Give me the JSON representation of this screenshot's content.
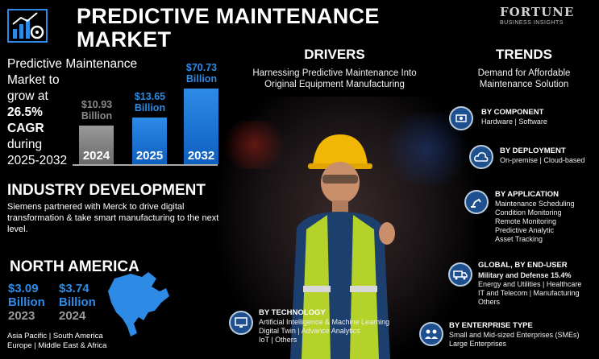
{
  "header": {
    "title_line1": "PREDICTIVE MAINTENANCE",
    "title_line2": "MARKET",
    "brand_name": "FORTUNE",
    "brand_sub": "BUSINESS INSIGHTS",
    "logo_icon": "chart-gear-icon"
  },
  "growth": {
    "line1": "Predictive Maintenance",
    "line2": "Market to",
    "line3": "grow at",
    "cagr": "26.5%",
    "cagr_label": "CAGR",
    "line4": "during",
    "period": "2025-2032"
  },
  "chart_data": {
    "type": "bar",
    "categories": [
      "2024",
      "2025",
      "2032"
    ],
    "values": [
      10.93,
      13.65,
      70.73
    ],
    "value_labels": [
      "$10.93 Billion",
      "$13.65 Billion",
      "$70.73 Billion"
    ],
    "colors": [
      "#8a8a8a",
      "#2d8be6",
      "#2d8be6"
    ]
  },
  "industry": {
    "title": "INDUSTRY DEVELOPMENT",
    "text": "Siemens partnered with Merck to drive digital transformation & take smart manufacturing to the next level."
  },
  "north_america": {
    "title": "NORTH AMERICA",
    "value1": "$3.09",
    "unit1": "Billion",
    "year1": "2023",
    "value2": "$3.74",
    "unit2": "Billion",
    "year2": "2024"
  },
  "regions": {
    "line1": "Asia Pacific  |  South America",
    "line2": "Europe  |  Middle East & Africa"
  },
  "drivers": {
    "title": "DRIVERS",
    "text1": "Harnessing Predictive Maintenance Into",
    "text2": "Original Equipment Manufacturing"
  },
  "trends": {
    "title": "TRENDS",
    "text1": "Demand for Affordable",
    "text2": "Maintenance Solution"
  },
  "segments": {
    "component": {
      "title": "BY COMPONENT",
      "items": "Hardware  |  Software",
      "icon": "component-icon"
    },
    "deployment": {
      "title": "BY DEPLOYMENT",
      "items": "On-premise  |  Cloud-based",
      "icon": "cloud-icon"
    },
    "application": {
      "title": "BY APPLICATION",
      "items": [
        "Maintenance Scheduling",
        "Condition Monitoring",
        "Remote Monitoring",
        "Predictive Analytic",
        "Asset Tracking"
      ],
      "icon": "robot-arm-icon"
    },
    "end_user": {
      "title": "GLOBAL, BY END-USER",
      "highlight": "Military and Defense 15.4%",
      "items": [
        "Energy and Utilities  |  Healthcare",
        "IT and Telecom  |  Manufacturing",
        "Others"
      ],
      "icon": "truck-icon"
    },
    "technology": {
      "title": "BY TECHNOLOGY",
      "items": [
        "Artificial Intelligence & Machine Learning",
        "Digital Twin  |  Advance Analytics",
        "IoT  |  Others"
      ],
      "icon": "monitor-icon"
    },
    "enterprise": {
      "title": "BY ENTERPRISE TYPE",
      "items": [
        "Small and Mid-sized Enterprises (SMEs)",
        "Large Enterprises"
      ],
      "icon": "people-icon"
    }
  }
}
